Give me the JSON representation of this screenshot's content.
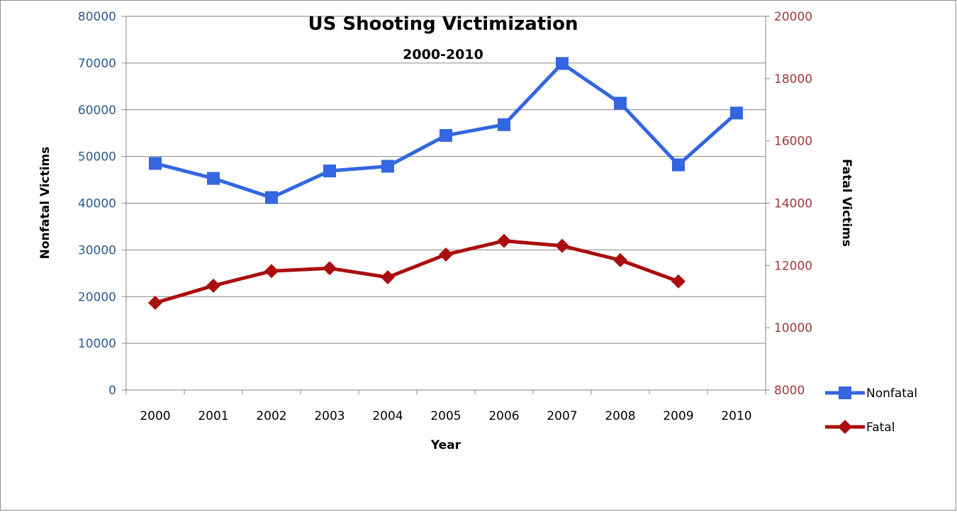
{
  "chart_data": {
    "type": "line",
    "title": "US Shooting Victimization",
    "subtitle": "2000-2010",
    "xlabel": "Year",
    "ylabel": "Nonfatal Victims",
    "y2label": "Fatal Victims",
    "categories": [
      "2000",
      "2001",
      "2002",
      "2003",
      "2004",
      "2005",
      "2006",
      "2007",
      "2008",
      "2009",
      "2010"
    ],
    "ylim": [
      0,
      80000
    ],
    "y2lim": [
      8000,
      20000
    ],
    "yticks": [
      "0",
      "10000",
      "20000",
      "30000",
      "40000",
      "50000",
      "60000",
      "70000",
      "80000"
    ],
    "y2ticks": [
      "8000",
      "10000",
      "12000",
      "14000",
      "16000",
      "18000",
      "20000"
    ],
    "grid": true,
    "legend_position": "right",
    "series": [
      {
        "name": "Nonfatal",
        "axis": "left",
        "color": "#3366e0",
        "marker": "square",
        "values": [
          48500,
          45300,
          41200,
          46900,
          47900,
          54500,
          56800,
          69900,
          61400,
          48200,
          59300
        ]
      },
      {
        "name": "Fatal",
        "axis": "right",
        "color": "#aa0e0e",
        "marker": "diamond",
        "values": [
          10800,
          11350,
          11820,
          11910,
          11620,
          12350,
          12790,
          12630,
          12170,
          11490,
          null
        ]
      }
    ]
  }
}
